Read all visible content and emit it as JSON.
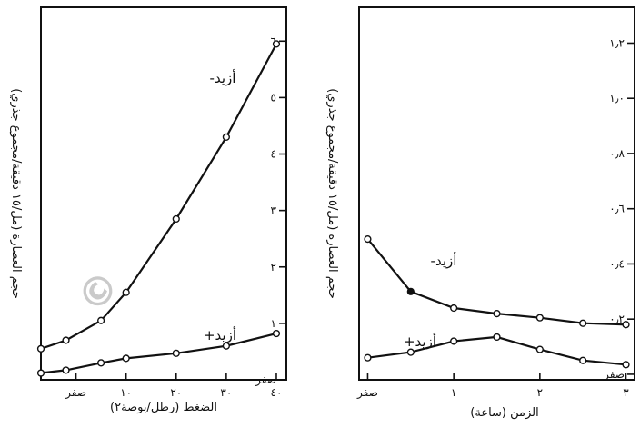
{
  "chart_data": [
    {
      "type": "line",
      "xlabel": "الضغط (رطل/بوصة٢)",
      "ylabel": "حجم العصارة (مل/١٥ دقيقة/مجموع جذري)",
      "xlim": [
        -7,
        42
      ],
      "ylim": [
        0,
        6.6
      ],
      "x_ticks": [
        0,
        10,
        20,
        30,
        40
      ],
      "x_tick_labels": [
        "صفر",
        "١٠",
        "٢٠",
        "٣٠",
        "٤٠"
      ],
      "y_ticks": [
        0,
        1,
        2,
        3,
        4,
        5,
        6
      ],
      "y_tick_labels": [
        "صفر",
        "١",
        "٢",
        "٣",
        "٤",
        "٥",
        "٦"
      ],
      "series": [
        {
          "name": "-أزيد",
          "marker": "open",
          "x": [
            -7,
            -2,
            5,
            10,
            20,
            30,
            40
          ],
          "y": [
            0.55,
            0.7,
            1.05,
            1.55,
            2.85,
            4.3,
            5.95
          ]
        },
        {
          "name": "+أزيد",
          "marker": "open",
          "x": [
            -7,
            -2,
            5,
            10,
            20,
            30,
            40
          ],
          "y": [
            0.12,
            0.17,
            0.3,
            0.38,
            0.47,
            0.6,
            0.82
          ]
        }
      ]
    },
    {
      "type": "line",
      "xlabel": "الزمن (ساعة)",
      "ylabel": "حجم العصارة (مل/١٥ دقيقة/مجموع جذري)",
      "xlim": [
        -0.1,
        3.1
      ],
      "ylim": [
        -0.02,
        1.33
      ],
      "x_ticks": [
        0,
        1,
        2,
        3
      ],
      "x_tick_labels": [
        "صفر",
        "١",
        "٢",
        "٣"
      ],
      "y_ticks": [
        0,
        0.2,
        0.4,
        0.6,
        0.8,
        1.0,
        1.2
      ],
      "y_tick_labels": [
        "صفر",
        "٠٫٢",
        "٠٫٤",
        "٠٫٦",
        "٠٫٨",
        "١٫٠",
        "١٫٢"
      ],
      "series": [
        {
          "name": "-أزيد",
          "marker": "open",
          "x": [
            0,
            0.5,
            1,
            1.5,
            2,
            2.5,
            3
          ],
          "y": [
            0.49,
            0.3,
            0.24,
            0.22,
            0.205,
            0.185,
            0.18
          ],
          "filled_index": 1
        },
        {
          "name": "+أزيد",
          "marker": "open",
          "x": [
            0,
            0.5,
            1,
            1.5,
            2,
            2.5,
            3
          ],
          "y": [
            0.06,
            0.08,
            0.12,
            0.135,
            0.09,
            0.05,
            0.035
          ]
        }
      ]
    }
  ],
  "watermark": "©"
}
